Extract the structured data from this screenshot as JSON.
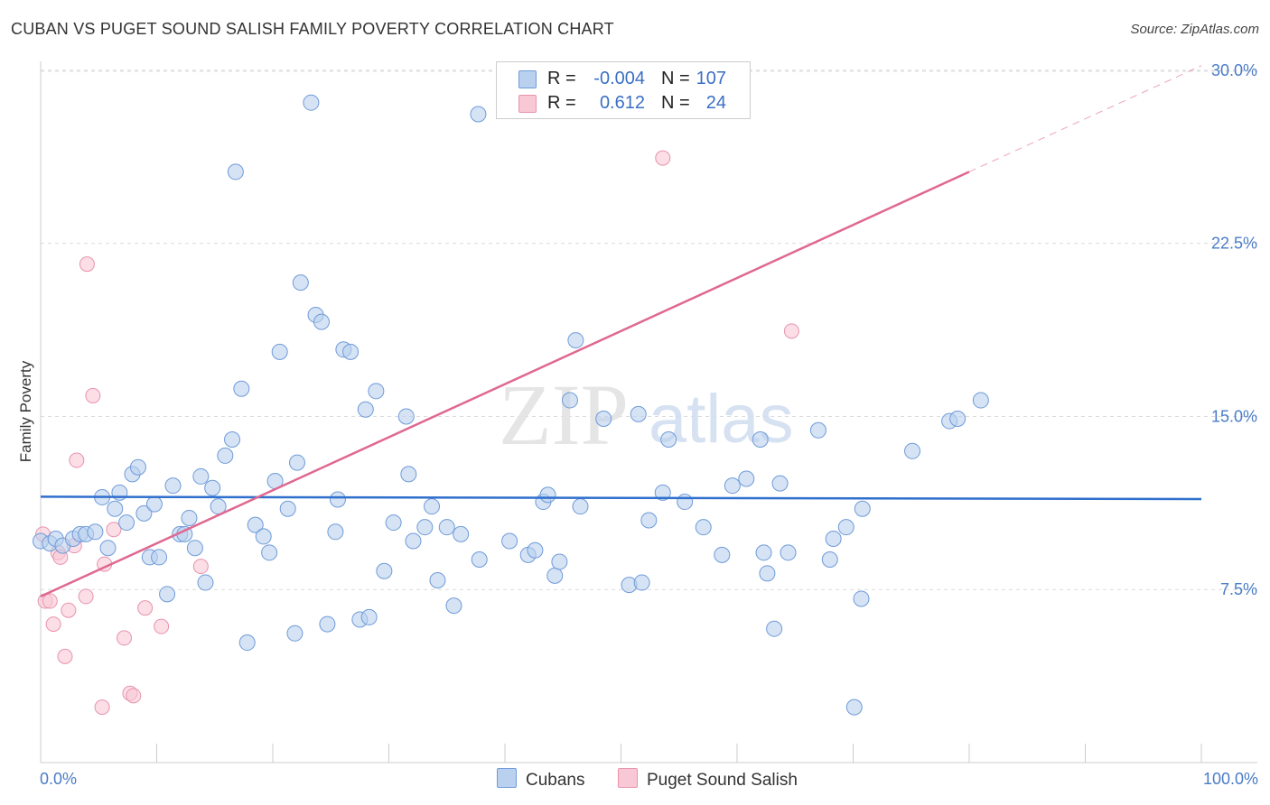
{
  "title": "CUBAN VS PUGET SOUND SALISH FAMILY POVERTY CORRELATION CHART",
  "source": "Source: ZipAtlas.com",
  "watermark": {
    "zip": "ZIP",
    "atlas": "atlas"
  },
  "colors": {
    "cubans_fill": "#b9d0ef",
    "cubans_stroke": "#6f9bd8",
    "cubans_line": "#2f6fcd",
    "salish_fill": "#f8c8d6",
    "salish_stroke": "#e893ae",
    "salish_line": "#e06890"
  },
  "legend": {
    "rows": [
      {
        "r_label": "R =",
        "r_value": "-0.004",
        "n_label": "N =",
        "n_value": "107"
      },
      {
        "r_label": "R =",
        "r_value": "0.612",
        "n_label": "N =",
        "n_value": "24"
      }
    ]
  },
  "bottom_legend": {
    "cubans": "Cubans",
    "salish": "Puget Sound Salish"
  },
  "chart_data": {
    "type": "scatter",
    "ylabel": "Family Poverty",
    "xlim": [
      0,
      100
    ],
    "ylim": [
      0,
      30.7
    ],
    "y_ticks": [
      {
        "value": 7.5,
        "label": "7.5%"
      },
      {
        "value": 15.0,
        "label": "15.0%"
      },
      {
        "value": 22.5,
        "label": "22.5%"
      },
      {
        "value": 30.0,
        "label": "30.0%"
      }
    ],
    "x_tick_labels": {
      "min": "0.0%",
      "max": "100.0%"
    },
    "series": [
      {
        "name": "Cubans",
        "trend": {
          "x": [
            0,
            100
          ],
          "y": [
            11.52,
            11.42
          ]
        },
        "points": [
          [
            0.0,
            9.6
          ],
          [
            0.8,
            9.5
          ],
          [
            1.3,
            9.7
          ],
          [
            1.9,
            9.4
          ],
          [
            2.8,
            9.7
          ],
          [
            3.4,
            9.9
          ],
          [
            3.9,
            9.9
          ],
          [
            4.7,
            10.0
          ],
          [
            5.3,
            11.5
          ],
          [
            5.8,
            9.3
          ],
          [
            6.4,
            11.0
          ],
          [
            6.8,
            11.7
          ],
          [
            7.4,
            10.4
          ],
          [
            7.9,
            12.5
          ],
          [
            8.4,
            12.8
          ],
          [
            8.9,
            10.8
          ],
          [
            9.4,
            8.9
          ],
          [
            9.8,
            11.2
          ],
          [
            10.2,
            8.9
          ],
          [
            10.9,
            7.3
          ],
          [
            11.4,
            12.0
          ],
          [
            12.0,
            9.9
          ],
          [
            12.4,
            9.9
          ],
          [
            12.8,
            10.6
          ],
          [
            13.3,
            9.3
          ],
          [
            13.8,
            12.4
          ],
          [
            14.2,
            7.8
          ],
          [
            14.8,
            11.9
          ],
          [
            15.3,
            11.1
          ],
          [
            15.9,
            13.3
          ],
          [
            16.5,
            14.0
          ],
          [
            16.8,
            25.6
          ],
          [
            17.3,
            16.2
          ],
          [
            17.8,
            5.2
          ],
          [
            18.5,
            10.3
          ],
          [
            19.2,
            9.8
          ],
          [
            19.7,
            9.1
          ],
          [
            20.2,
            12.2
          ],
          [
            20.6,
            17.8
          ],
          [
            21.3,
            11.0
          ],
          [
            21.9,
            5.6
          ],
          [
            22.1,
            13.0
          ],
          [
            22.4,
            20.8
          ],
          [
            23.3,
            28.6
          ],
          [
            23.7,
            19.4
          ],
          [
            24.2,
            19.1
          ],
          [
            24.7,
            6.0
          ],
          [
            25.4,
            10.0
          ],
          [
            25.6,
            11.4
          ],
          [
            26.1,
            17.9
          ],
          [
            26.7,
            17.8
          ],
          [
            27.5,
            6.2
          ],
          [
            28.0,
            15.3
          ],
          [
            28.3,
            6.3
          ],
          [
            28.9,
            16.1
          ],
          [
            29.6,
            8.3
          ],
          [
            30.4,
            10.4
          ],
          [
            31.5,
            15.0
          ],
          [
            31.7,
            12.5
          ],
          [
            32.1,
            9.6
          ],
          [
            33.1,
            10.2
          ],
          [
            34.2,
            7.9
          ],
          [
            33.7,
            11.1
          ],
          [
            35.0,
            10.2
          ],
          [
            35.6,
            6.8
          ],
          [
            36.2,
            9.9
          ],
          [
            37.7,
            28.1
          ],
          [
            37.8,
            8.8
          ],
          [
            40.4,
            9.6
          ],
          [
            42.0,
            9.0
          ],
          [
            42.6,
            9.2
          ],
          [
            43.3,
            11.3
          ],
          [
            43.7,
            11.6
          ],
          [
            44.3,
            8.1
          ],
          [
            44.7,
            8.7
          ],
          [
            45.6,
            15.7
          ],
          [
            46.1,
            18.3
          ],
          [
            46.5,
            11.1
          ],
          [
            48.5,
            14.9
          ],
          [
            50.7,
            7.7
          ],
          [
            51.5,
            15.1
          ],
          [
            51.8,
            7.8
          ],
          [
            52.4,
            10.5
          ],
          [
            53.6,
            11.7
          ],
          [
            54.1,
            14.0
          ],
          [
            55.5,
            11.3
          ],
          [
            57.1,
            10.2
          ],
          [
            58.7,
            9.0
          ],
          [
            60.8,
            12.3
          ],
          [
            62.3,
            9.1
          ],
          [
            62.6,
            8.2
          ],
          [
            63.2,
            5.8
          ],
          [
            63.7,
            12.1
          ],
          [
            64.4,
            9.1
          ],
          [
            67.0,
            14.4
          ],
          [
            68.0,
            8.8
          ],
          [
            68.3,
            9.7
          ],
          [
            69.4,
            10.2
          ],
          [
            70.1,
            2.4
          ],
          [
            70.7,
            7.1
          ],
          [
            70.8,
            11.0
          ],
          [
            75.1,
            13.5
          ],
          [
            78.3,
            14.8
          ],
          [
            79.0,
            14.9
          ],
          [
            81.0,
            15.7
          ],
          [
            62.0,
            14.0
          ],
          [
            59.6,
            12.0
          ]
        ]
      },
      {
        "name": "Puget Sound Salish",
        "trend": {
          "x": [
            0,
            80
          ],
          "y": [
            7.2,
            25.6
          ],
          "dashed_to": {
            "x": 100,
            "y": 30.2
          }
        },
        "points": [
          [
            0.2,
            9.9
          ],
          [
            0.4,
            7.0
          ],
          [
            0.8,
            7.0
          ],
          [
            1.1,
            6.0
          ],
          [
            1.5,
            9.1
          ],
          [
            1.7,
            8.9
          ],
          [
            2.1,
            4.6
          ],
          [
            2.4,
            6.6
          ],
          [
            2.9,
            9.4
          ],
          [
            3.1,
            13.1
          ],
          [
            3.9,
            7.2
          ],
          [
            4.0,
            21.6
          ],
          [
            4.5,
            15.9
          ],
          [
            5.3,
            2.4
          ],
          [
            5.5,
            8.6
          ],
          [
            6.3,
            10.1
          ],
          [
            7.2,
            5.4
          ],
          [
            7.7,
            3.0
          ],
          [
            8.0,
            2.9
          ],
          [
            9.0,
            6.7
          ],
          [
            10.4,
            5.9
          ],
          [
            13.8,
            8.5
          ],
          [
            53.6,
            26.2
          ],
          [
            64.7,
            18.7
          ]
        ]
      }
    ]
  }
}
